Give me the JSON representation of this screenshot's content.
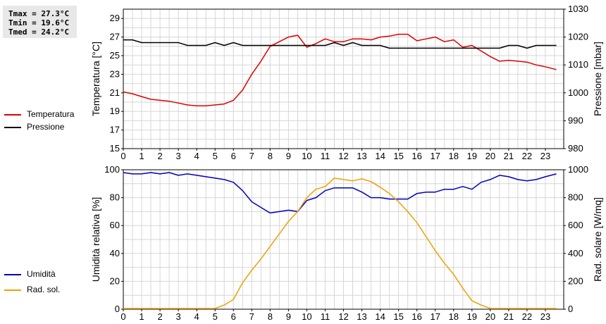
{
  "stats": {
    "tmax": "Tmax = 27.3°C",
    "tmin": "Tmin = 19.6°C",
    "tmed": "Tmed = 24.2°C"
  },
  "legend": {
    "top": [
      {
        "label": "Temperatura",
        "color": "#dd0000"
      },
      {
        "label": "Pressione",
        "color": "#000000"
      }
    ],
    "bottom": [
      {
        "label": "Umidità",
        "color": "#0000bb"
      },
      {
        "label": "Rad. sol.",
        "color": "#eea000"
      }
    ]
  },
  "chart_data": [
    {
      "type": "line",
      "xlabel": "",
      "ylabel": "Temperatura [°C]",
      "y2label": "Pressione [mbar]",
      "xlim": [
        0,
        24
      ],
      "ylim": [
        15,
        30
      ],
      "y2lim": [
        980,
        1030
      ],
      "xticks": [
        0,
        1,
        2,
        3,
        4,
        5,
        6,
        7,
        8,
        9,
        10,
        11,
        12,
        13,
        14,
        15,
        16,
        17,
        18,
        19,
        20,
        21,
        22,
        23
      ],
      "yticks": [
        15,
        17,
        19,
        21,
        23,
        25,
        27,
        29
      ],
      "y2ticks": [
        980,
        990,
        1000,
        1010,
        1020,
        1030
      ],
      "grid": true,
      "series": [
        {
          "name": "Temperatura",
          "axis": "left",
          "color": "#dd0000",
          "x": [
            0,
            0.5,
            1,
            1.5,
            2,
            2.5,
            3,
            3.5,
            4,
            4.5,
            5,
            5.5,
            6,
            6.5,
            7,
            7.5,
            8,
            8.5,
            9,
            9.5,
            10,
            10.5,
            11,
            11.5,
            12,
            12.5,
            13,
            13.5,
            14,
            14.5,
            15,
            15.5,
            16,
            16.5,
            17,
            17.5,
            18,
            18.5,
            19,
            19.5,
            20,
            20.5,
            21,
            21.5,
            22,
            22.5,
            23,
            23.6
          ],
          "y": [
            21.1,
            20.9,
            20.6,
            20.3,
            20.2,
            20.1,
            19.9,
            19.7,
            19.6,
            19.6,
            19.7,
            19.8,
            20.2,
            21.3,
            23.0,
            24.4,
            26.0,
            26.5,
            27.0,
            27.2,
            25.9,
            26.3,
            26.8,
            26.5,
            26.5,
            26.8,
            26.8,
            26.7,
            27.0,
            27.1,
            27.3,
            27.3,
            26.6,
            26.8,
            27.0,
            26.5,
            26.7,
            25.9,
            26.1,
            25.5,
            24.9,
            24.4,
            24.5,
            24.4,
            24.3,
            24.0,
            23.8,
            23.5
          ]
        },
        {
          "name": "Pressione",
          "axis": "right",
          "color": "#000000",
          "x": [
            0,
            0.5,
            1,
            1.5,
            2,
            2.5,
            3,
            3.5,
            4,
            4.5,
            5,
            5.5,
            6,
            6.5,
            7,
            7.5,
            8,
            8.5,
            9,
            9.5,
            10,
            10.5,
            11,
            11.5,
            12,
            12.5,
            13,
            13.5,
            14,
            14.5,
            15,
            15.5,
            16,
            16.5,
            17,
            17.5,
            18,
            18.5,
            19,
            19.5,
            20,
            20.5,
            21,
            21.5,
            22,
            22.5,
            23,
            23.6
          ],
          "y": [
            1019,
            1019,
            1018,
            1018,
            1018,
            1018,
            1018,
            1017,
            1017,
            1017,
            1018,
            1017,
            1018,
            1017,
            1017,
            1017,
            1017,
            1017,
            1017,
            1017,
            1017,
            1017,
            1017,
            1018,
            1017,
            1018,
            1017,
            1017,
            1017,
            1016,
            1016,
            1016,
            1016,
            1016,
            1016,
            1016,
            1016,
            1016,
            1016,
            1016,
            1016,
            1016,
            1017,
            1017,
            1016,
            1017,
            1017,
            1017
          ]
        }
      ]
    },
    {
      "type": "line",
      "xlabel": "",
      "ylabel": "Umidità relativa [%]",
      "y2label": "Rad. solare [W/mq]",
      "xlim": [
        0,
        24
      ],
      "ylim": [
        0,
        100
      ],
      "y2lim": [
        0,
        1000
      ],
      "xticks": [
        0,
        1,
        2,
        3,
        4,
        5,
        6,
        7,
        8,
        9,
        10,
        11,
        12,
        13,
        14,
        15,
        16,
        17,
        18,
        19,
        20,
        21,
        22,
        23
      ],
      "yticks": [
        0,
        20,
        40,
        60,
        80,
        100
      ],
      "y2ticks": [
        0,
        200,
        400,
        600,
        800,
        1000
      ],
      "grid": true,
      "series": [
        {
          "name": "Umidità",
          "axis": "left",
          "color": "#0000bb",
          "x": [
            0,
            0.5,
            1,
            1.5,
            2,
            2.5,
            3,
            3.5,
            4,
            4.5,
            5,
            5.5,
            6,
            6.5,
            7,
            7.5,
            8,
            8.5,
            9,
            9.5,
            10,
            10.5,
            11,
            11.5,
            12,
            12.5,
            13,
            13.5,
            14,
            14.5,
            15,
            15.5,
            16,
            16.5,
            17,
            17.5,
            18,
            18.5,
            19,
            19.5,
            20,
            20.5,
            21,
            21.5,
            22,
            22.5,
            23,
            23.6
          ],
          "y": [
            98,
            97,
            97,
            98,
            97,
            98,
            96,
            97,
            96,
            95,
            94,
            93,
            91,
            85,
            77,
            73,
            69,
            70,
            71,
            70,
            78,
            80,
            85,
            87,
            87,
            87,
            84,
            80,
            80,
            79,
            79,
            79,
            83,
            84,
            84,
            86,
            86,
            88,
            86,
            91,
            93,
            96,
            95,
            93,
            92,
            93,
            95,
            97
          ]
        },
        {
          "name": "Rad. sol.",
          "axis": "right",
          "color": "#eea000",
          "x": [
            0,
            0.5,
            1,
            1.5,
            2,
            2.5,
            3,
            3.5,
            4,
            4.5,
            5,
            5.5,
            6,
            6.5,
            7,
            7.5,
            8,
            8.5,
            9,
            9.5,
            10,
            10.5,
            11,
            11.5,
            12,
            12.5,
            13,
            13.5,
            14,
            14.5,
            15,
            15.5,
            16,
            16.5,
            17,
            17.5,
            18,
            18.5,
            19,
            19.5,
            20,
            20.5,
            21,
            21.5,
            22,
            22.5,
            23,
            23.6
          ],
          "y": [
            5,
            5,
            5,
            5,
            5,
            5,
            5,
            5,
            5,
            5,
            5,
            30,
            70,
            190,
            280,
            360,
            450,
            540,
            630,
            700,
            800,
            860,
            880,
            940,
            930,
            920,
            935,
            915,
            875,
            830,
            770,
            700,
            620,
            520,
            420,
            330,
            250,
            150,
            60,
            30,
            5,
            5,
            5,
            5,
            5,
            5,
            5,
            5
          ]
        }
      ]
    }
  ]
}
